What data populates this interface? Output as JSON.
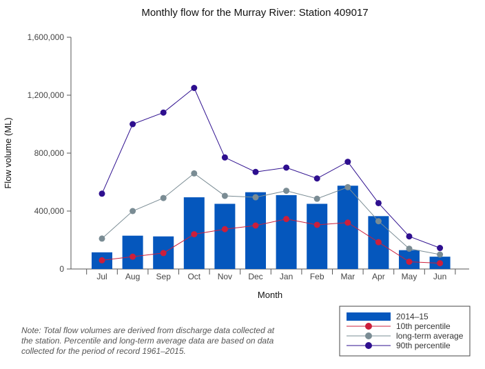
{
  "chart_data": {
    "type": "bar+line",
    "title": "Monthly flow for the Murray River: Station 409017",
    "xlabel": "Month",
    "ylabel": "Flow volume (ML)",
    "ylim": [
      0,
      1600000
    ],
    "yticks": [
      0,
      400000,
      800000,
      1200000,
      1600000
    ],
    "ytick_labels": [
      "0",
      "400,000",
      "800,000",
      "1,200,000",
      "1,600,000"
    ],
    "categories": [
      "Jul",
      "Aug",
      "Sep",
      "Oct",
      "Nov",
      "Dec",
      "Jan",
      "Feb",
      "Mar",
      "Apr",
      "May",
      "Jun"
    ],
    "legend_position": "bottom-right",
    "series": [
      {
        "name": "2014–15",
        "kind": "bar",
        "color": "#0557bd",
        "values": [
          115000,
          230000,
          225000,
          495000,
          450000,
          530000,
          510000,
          450000,
          575000,
          365000,
          130000,
          85000
        ]
      },
      {
        "name": "10th percentile",
        "kind": "line",
        "color": "#cc1f3b",
        "values": [
          60000,
          85000,
          110000,
          240000,
          275000,
          300000,
          345000,
          305000,
          320000,
          185000,
          50000,
          40000
        ]
      },
      {
        "name": "long-term average",
        "kind": "line",
        "color": "#7a8c94",
        "values": [
          210000,
          400000,
          490000,
          660000,
          505000,
          495000,
          540000,
          485000,
          565000,
          330000,
          140000,
          100000
        ]
      },
      {
        "name": "90th percentile",
        "kind": "line",
        "color": "#2e0f8f",
        "values": [
          520000,
          1000000,
          1080000,
          1250000,
          770000,
          670000,
          700000,
          625000,
          740000,
          455000,
          225000,
          145000
        ]
      }
    ]
  },
  "note": "Note: Total flow volumes are derived from discharge data collected at the station. Percentile and long-term average data are based on data collected for the period of record 1961–2015."
}
